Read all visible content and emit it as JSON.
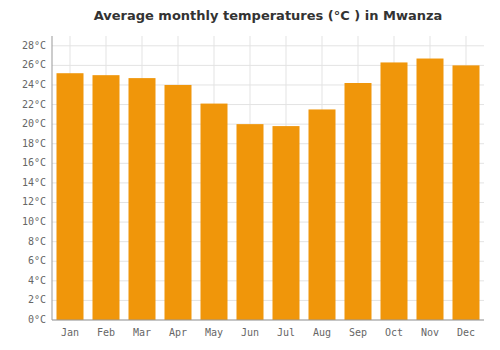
{
  "chart_data": {
    "type": "bar",
    "title": "Average monthly temperatures (°C ) in Mwanza",
    "categories": [
      "Jan",
      "Feb",
      "Mar",
      "Apr",
      "May",
      "Jun",
      "Jul",
      "Aug",
      "Sep",
      "Oct",
      "Nov",
      "Dec"
    ],
    "values": [
      25.2,
      25.0,
      24.7,
      24.0,
      22.1,
      20.0,
      19.8,
      21.5,
      24.2,
      26.3,
      26.7,
      26.0
    ],
    "color": "#F0960A",
    "ylim": [
      0,
      29
    ],
    "yticks": [
      {
        "value": 0,
        "label": "0°C"
      },
      {
        "value": 2,
        "label": "2°C"
      },
      {
        "value": 4,
        "label": "4°C"
      },
      {
        "value": 6,
        "label": "6°C"
      },
      {
        "value": 8,
        "label": "8°C"
      },
      {
        "value": 10,
        "label": "10°C"
      },
      {
        "value": 12,
        "label": "12°C"
      },
      {
        "value": 14,
        "label": "14°C"
      },
      {
        "value": 16,
        "label": "16°C"
      },
      {
        "value": 18,
        "label": "18°C"
      },
      {
        "value": 20,
        "label": "20°C"
      },
      {
        "value": 22,
        "label": "22°C"
      },
      {
        "value": 24,
        "label": "24°C"
      },
      {
        "value": 26,
        "label": "26°C"
      },
      {
        "value": 28,
        "label": "28°C"
      }
    ],
    "grid": true
  }
}
